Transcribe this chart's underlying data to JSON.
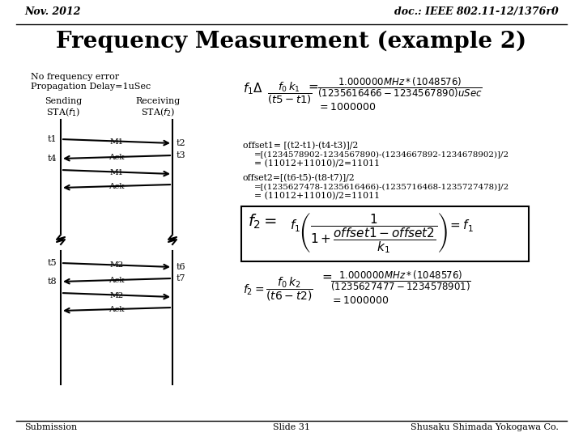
{
  "title": "Frequency Measurement (example 2)",
  "header_left": "Nov. 2012",
  "header_right": "doc.: IEEE 802.11-12/1376r0",
  "footer_left": "Submission",
  "footer_center": "Slide 31",
  "footer_right": "Shusaku Shimada Yokogawa Co.",
  "note_line1": "No frequency error",
  "note_line2": "Propagation Delay=1uSec",
  "bg_color": "#ffffff"
}
